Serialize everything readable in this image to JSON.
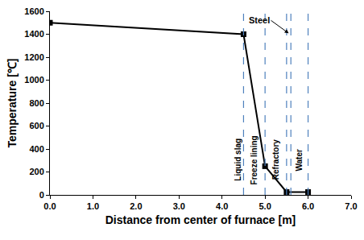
{
  "chart_data": {
    "type": "line",
    "x": [
      0,
      4.5,
      5.0,
      5.5,
      6.0
    ],
    "values": [
      1500,
      1400,
      250,
      25,
      25
    ],
    "color": "#000000",
    "marker": "square",
    "line_style": "solid",
    "xlabel": "Distance from center of furnace [m]",
    "ylabel": "Temperature [℃]",
    "xlim": [
      0,
      7
    ],
    "xticks": [
      {
        "value": 0,
        "label": "0.0"
      },
      {
        "value": 1,
        "label": "1.0"
      },
      {
        "value": 2,
        "label": "2.0"
      },
      {
        "value": 3,
        "label": "3.0"
      },
      {
        "value": 4,
        "label": "4.0"
      },
      {
        "value": 5,
        "label": "5.0"
      },
      {
        "value": 6,
        "label": "6.0"
      },
      {
        "value": 7,
        "label": "7.0"
      }
    ],
    "ylim": [
      0,
      1600
    ],
    "yticks": [
      0,
      200,
      400,
      600,
      800,
      1000,
      1200,
      1400,
      1600
    ],
    "grid": false,
    "layers": [
      {
        "label": "Liquid slag",
        "from": 0,
        "to": 4.5
      },
      {
        "label": "Freeze lining",
        "from": 4.5,
        "to": 5.0
      },
      {
        "label": "Refractory",
        "from": 5.0,
        "to": 5.5
      },
      {
        "label": "Steel",
        "from": 5.5,
        "to": 5.6
      },
      {
        "label": "Water",
        "from": 5.6,
        "to": 6.0
      }
    ]
  }
}
